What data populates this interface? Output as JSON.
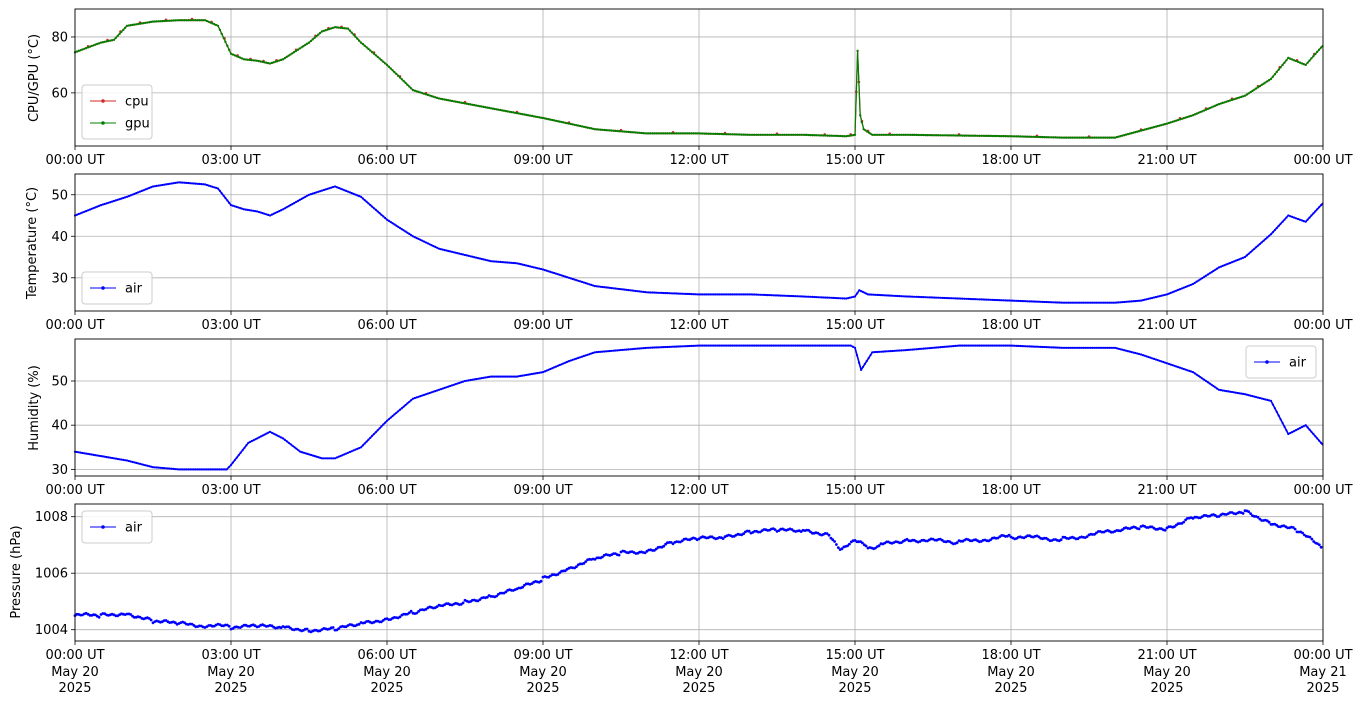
{
  "colors": {
    "cpu": "#d62728",
    "gpu": "#008000",
    "air": "#0000ff",
    "grid": "#b0b0b0"
  },
  "x_tick_labels": [
    "00:00 UT",
    "03:00 UT",
    "06:00 UT",
    "09:00 UT",
    "12:00 UT",
    "15:00 UT",
    "18:00 UT",
    "21:00 UT",
    "00:00 UT"
  ],
  "x_tick_dates": [
    "May 20\n2025",
    "May 20\n2025",
    "May 20\n2025",
    "May 20\n2025",
    "May 20\n2025",
    "May 20\n2025",
    "May 20\n2025",
    "May 20\n2025",
    "May 21\n2025"
  ],
  "chart_data": [
    {
      "type": "line",
      "ylabel": "CPU/GPU (°C)",
      "xlim": [
        "2025-05-20T00:00Z",
        "2025-05-21T00:00Z"
      ],
      "ylim": [
        41,
        90
      ],
      "yticks": [
        60,
        80
      ],
      "grid": true,
      "legend": "lower-left",
      "series": [
        {
          "name": "cpu",
          "color": "#d62728",
          "x": [
            "00:00",
            "00:30",
            "00:45",
            "01:00",
            "01:30",
            "02:00",
            "02:30",
            "02:45",
            "03:00",
            "03:15",
            "03:30",
            "03:45",
            "04:00",
            "04:30",
            "04:45",
            "05:00",
            "05:15",
            "05:30",
            "06:00",
            "06:30",
            "07:00",
            "08:00",
            "09:00",
            "10:00",
            "11:00",
            "12:00",
            "13:00",
            "14:00",
            "14:50",
            "15:00",
            "15:03",
            "15:06",
            "15:10",
            "15:20",
            "16:00",
            "18:00",
            "19:00",
            "20:00",
            "21:00",
            "21:30",
            "22:00",
            "22:30",
            "23:00",
            "23:20",
            "23:40",
            "24:00"
          ],
          "y": [
            74.5,
            78,
            79,
            84,
            85.5,
            86,
            86,
            84,
            74,
            72,
            71.5,
            70.5,
            72,
            78,
            82,
            83.5,
            83,
            78,
            70,
            61,
            58,
            54.5,
            51,
            47,
            45.5,
            45.5,
            45,
            45,
            44.5,
            45,
            75,
            52,
            47,
            45,
            45,
            44.5,
            44,
            44,
            49,
            52,
            56,
            59,
            65,
            72.5,
            70,
            77
          ]
        },
        {
          "name": "gpu",
          "color": "#008000",
          "x": [
            "00:00",
            "00:30",
            "00:45",
            "01:00",
            "01:30",
            "02:00",
            "02:30",
            "02:45",
            "03:00",
            "03:15",
            "03:30",
            "03:45",
            "04:00",
            "04:30",
            "04:45",
            "05:00",
            "05:15",
            "05:30",
            "06:00",
            "06:30",
            "07:00",
            "08:00",
            "09:00",
            "10:00",
            "11:00",
            "12:00",
            "13:00",
            "14:00",
            "14:50",
            "15:00",
            "15:03",
            "15:06",
            "15:10",
            "15:20",
            "16:00",
            "18:00",
            "19:00",
            "20:00",
            "21:00",
            "21:30",
            "22:00",
            "22:30",
            "23:00",
            "23:20",
            "23:40",
            "24:00"
          ],
          "y": [
            74.5,
            78,
            79,
            84,
            85.5,
            86,
            86,
            84,
            74,
            72,
            71.5,
            70.5,
            72,
            78,
            82,
            83.5,
            83,
            78,
            70,
            61,
            58,
            54.5,
            51,
            47,
            45.5,
            45.5,
            45,
            45,
            44.5,
            45,
            75,
            52,
            47,
            45,
            45,
            44.5,
            44,
            44,
            49,
            52,
            56,
            59,
            65,
            72.5,
            70,
            77
          ]
        }
      ]
    },
    {
      "type": "line",
      "ylabel": "Temperature (°C)",
      "xlim": [
        "2025-05-20T00:00Z",
        "2025-05-21T00:00Z"
      ],
      "ylim": [
        22,
        55
      ],
      "yticks": [
        30,
        40,
        50
      ],
      "grid": true,
      "legend": "lower-left",
      "series": [
        {
          "name": "air",
          "color": "#0000ff",
          "x": [
            "00:00",
            "00:30",
            "01:00",
            "01:30",
            "02:00",
            "02:30",
            "02:45",
            "03:00",
            "03:15",
            "03:30",
            "03:45",
            "04:00",
            "04:30",
            "05:00",
            "05:30",
            "06:00",
            "06:30",
            "07:00",
            "07:30",
            "08:00",
            "08:30",
            "09:00",
            "09:30",
            "10:00",
            "11:00",
            "12:00",
            "13:00",
            "14:00",
            "14:50",
            "15:00",
            "15:05",
            "15:15",
            "16:00",
            "17:00",
            "18:00",
            "19:00",
            "20:00",
            "20:30",
            "21:00",
            "21:30",
            "22:00",
            "22:30",
            "23:00",
            "23:20",
            "23:40",
            "24:00"
          ],
          "y": [
            45,
            47.5,
            49.5,
            52,
            53,
            52.5,
            51.5,
            47.5,
            46.5,
            46,
            45,
            46.5,
            50,
            52,
            49.5,
            44,
            40,
            37,
            35.5,
            34,
            33.5,
            32,
            30,
            28,
            26.5,
            26,
            26,
            25.5,
            25,
            25.5,
            27,
            26,
            25.5,
            25,
            24.5,
            24,
            24,
            24.5,
            26,
            28.5,
            32.5,
            35,
            40.5,
            45,
            43.5,
            48
          ]
        }
      ]
    },
    {
      "type": "line",
      "ylabel": "Humidity (%)",
      "xlim": [
        "2025-05-20T00:00Z",
        "2025-05-21T00:00Z"
      ],
      "ylim": [
        28.5,
        59.5
      ],
      "yticks": [
        30,
        40,
        50
      ],
      "grid": true,
      "legend": "upper-right",
      "series": [
        {
          "name": "air",
          "color": "#0000ff",
          "x": [
            "00:00",
            "00:30",
            "01:00",
            "01:30",
            "02:00",
            "02:30",
            "02:55",
            "03:00",
            "03:20",
            "03:45",
            "04:00",
            "04:20",
            "04:45",
            "05:00",
            "05:30",
            "06:00",
            "06:30",
            "07:00",
            "07:30",
            "08:00",
            "08:30",
            "09:00",
            "09:30",
            "10:00",
            "11:00",
            "12:00",
            "13:00",
            "14:00",
            "14:55",
            "15:00",
            "15:07",
            "15:20",
            "16:00",
            "17:00",
            "18:00",
            "19:00",
            "20:00",
            "20:30",
            "21:00",
            "21:30",
            "22:00",
            "22:30",
            "23:00",
            "23:20",
            "23:40",
            "24:00"
          ],
          "y": [
            34,
            33,
            32,
            30.5,
            30,
            30,
            30,
            31,
            36,
            38.5,
            37,
            34,
            32.5,
            32.5,
            35,
            41,
            46,
            48,
            50,
            51,
            51,
            52,
            54.5,
            56.5,
            57.5,
            58,
            58,
            58,
            58,
            57.5,
            52.5,
            56.5,
            57,
            58,
            58,
            57.5,
            57.5,
            56,
            54,
            52,
            48,
            47,
            45.5,
            38,
            40,
            35.5
          ]
        }
      ]
    },
    {
      "type": "scatter",
      "ylabel": "Pressure (hPa)",
      "xlim": [
        "2025-05-20T00:00Z",
        "2025-05-21T00:00Z"
      ],
      "ylim": [
        1003.6,
        1008.45
      ],
      "yticks": [
        1004,
        1006,
        1008
      ],
      "grid": true,
      "legend": "upper-left",
      "series": [
        {
          "name": "air",
          "color": "#0000ff",
          "x": [
            "00:00",
            "00:30",
            "01:00",
            "01:30",
            "02:00",
            "03:00",
            "03:30",
            "04:00",
            "04:30",
            "05:00",
            "05:30",
            "06:00",
            "06:30",
            "07:00",
            "07:30",
            "08:00",
            "08:30",
            "09:00",
            "09:30",
            "10:00",
            "10:30",
            "11:00",
            "11:30",
            "12:00",
            "12:30",
            "13:00",
            "13:30",
            "14:00",
            "14:30",
            "14:45",
            "15:00",
            "15:15",
            "15:30",
            "16:00",
            "17:00",
            "18:00",
            "19:00",
            "20:00",
            "20:30",
            "21:00",
            "21:30",
            "22:00",
            "22:30",
            "23:00",
            "23:30",
            "24:00"
          ],
          "y": [
            1004.5,
            1004.5,
            1004.6,
            1004.3,
            1004.2,
            1004.1,
            1004.1,
            1004.1,
            1004,
            1004,
            1004.2,
            1004.4,
            1004.6,
            1004.8,
            1005,
            1005.2,
            1005.4,
            1005.8,
            1006.2,
            1006.5,
            1006.7,
            1006.8,
            1007.1,
            1007.2,
            1007.3,
            1007.5,
            1007.5,
            1007.5,
            1007.4,
            1006.8,
            1007.2,
            1006.9,
            1007,
            1007.2,
            1007.1,
            1007.3,
            1007.2,
            1007.5,
            1007.6,
            1007.6,
            1008,
            1008,
            1008.2,
            1007.8,
            1007.5,
            1006.9
          ]
        }
      ]
    }
  ]
}
